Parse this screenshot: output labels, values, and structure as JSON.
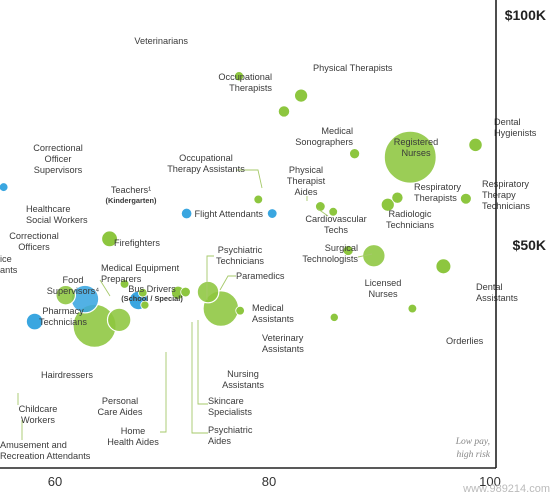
{
  "chart_data": {
    "type": "scatter",
    "title": "",
    "xlabel": "",
    "ylabel": "",
    "x_ticks": [
      "60",
      "80",
      "100"
    ],
    "y_ticks": [
      "$100K",
      "$50K"
    ],
    "xlim": [
      50,
      100
    ],
    "ylim": [
      0,
      105000
    ],
    "colors": {
      "green": "#8dc63f",
      "blue": "#3aa6e0",
      "leader": "#a6c96a",
      "axis": "#222222"
    },
    "note": [
      "Low pay,",
      "high risk"
    ],
    "watermark": "www.989214.com",
    "points": [
      {
        "label": [
          "Veterinarians"
        ],
        "x": 77.2,
        "y": 98000,
        "size": 1,
        "color": "green"
      },
      {
        "label": [
          "Physical Therapists"
        ],
        "x": 83.0,
        "y": 92500,
        "size": 2,
        "color": "green"
      },
      {
        "label": [
          "Occupational",
          "Therapists"
        ],
        "x": 81.4,
        "y": 88000,
        "size": 1.5,
        "color": "green"
      },
      {
        "label": [
          "Medical",
          "Sonographers"
        ],
        "x": 88.0,
        "y": 76000,
        "size": 1.2,
        "color": "green"
      },
      {
        "label": [
          "Registered",
          "Nurses"
        ],
        "x": 93.2,
        "y": 75000,
        "size": 32,
        "color": "green"
      },
      {
        "label": [
          "Dental",
          "Hygienists"
        ],
        "x": 99.3,
        "y": 78500,
        "size": 2.1,
        "color": "green"
      },
      {
        "label": [
          "Correctional",
          "Officer",
          "Supervisors"
        ],
        "x": 55.2,
        "y": 66500,
        "size": 0.9,
        "color": "blue"
      },
      {
        "label": [
          "Occupational",
          "Therapy Assistants"
        ],
        "x": 79.0,
        "y": 63000,
        "size": 0.9,
        "color": "green"
      },
      {
        "label": [
          "Teachers¹",
          "(Kindergarten)"
        ],
        "x": 72.3,
        "y": 59000,
        "size": 1.3,
        "color": "blue"
      },
      {
        "label": [
          "Physical",
          "Therapist",
          "Assistants"
        ],
        "x": 84.8,
        "y": 61000,
        "size": 1.1,
        "color": "green"
      },
      {
        "label": [
          "Cardiovascular",
          "Techs"
        ],
        "x": 86.0,
        "y": 59500,
        "size": 0.9,
        "color": "green"
      },
      {
        "label": [
          "Respiratory",
          "Therapists"
        ],
        "x": 92.0,
        "y": 63500,
        "size": 1.5,
        "color": "green"
      },
      {
        "label": [
          "Radiologic",
          "Technicians"
        ],
        "x": 91.1,
        "y": 61500,
        "size": 2,
        "color": "green"
      },
      {
        "label": [
          "Respiratory",
          "Therapy",
          "Technicians"
        ],
        "x": 98.4,
        "y": 63200,
        "size": 1.4,
        "color": "green"
      },
      {
        "label": [
          "Healthcare",
          "Social Workers"
        ],
        "x": 51.3,
        "y": 59000,
        "size": 1.6,
        "color": "green"
      },
      {
        "label": [
          "Flight Attendants"
        ],
        "x": 80.3,
        "y": 59000,
        "size": 1.1,
        "color": "blue"
      },
      {
        "label": [
          "Correctional",
          "Officers"
        ],
        "x": 53.3,
        "y": 45000,
        "size": 3.5,
        "color": "blue"
      },
      {
        "label": [
          "Firefighters"
        ],
        "x": 65.1,
        "y": 51800,
        "size": 2.9,
        "color": "green"
      },
      {
        "label": [
          "Surgical",
          "Technologists"
        ],
        "x": 87.4,
        "y": 48500,
        "size": 1.2,
        "color": "green"
      },
      {
        "label": [
          "Licensed",
          "Nurses"
        ],
        "x": 89.8,
        "y": 47000,
        "size": 6,
        "color": "green"
      },
      {
        "label": [
          "Medical Equipment",
          "Preparers"
        ],
        "x": 66.5,
        "y": 39000,
        "size": 0.9,
        "color": "green"
      },
      {
        "label": [
          "Psychiatric",
          "Technicians"
        ],
        "x": 71.5,
        "y": 36500,
        "size": 2,
        "color": "green"
      },
      {
        "label": [
          "Paramedics"
        ],
        "x": 72.2,
        "y": 36700,
        "size": 1.1,
        "color": "green"
      },
      {
        "label": [
          "Food",
          "Supervisors⁴"
        ],
        "x": 62.8,
        "y": 34700,
        "size": 9,
        "color": "blue"
      },
      {
        "label": [
          "Pharmacy",
          "Technicians"
        ],
        "x": 61.0,
        "y": 35800,
        "size": 4.5,
        "color": "green"
      },
      {
        "label": [
          "Bus Drivers",
          "(School / Special)"
        ],
        "x": 67.8,
        "y": 34300,
        "size": 4,
        "color": "blue"
      },
      {
        "label": [
          "Medical",
          "Assistants"
        ],
        "x": 74.3,
        "y": 36700,
        "size": 5.5,
        "color": "green"
      },
      {
        "label": [
          "Dental",
          "Assistants"
        ],
        "x": 96.3,
        "y": 44000,
        "size": 2.6,
        "color": "green"
      },
      {
        "label": [
          "Veterinary",
          "Assistants"
        ],
        "x": 77.3,
        "y": 31400,
        "size": 0.9,
        "color": "green"
      },
      {
        "label": [
          "Nursing",
          "Assistants"
        ],
        "x": 75.5,
        "y": 32000,
        "size": 15,
        "color": "green"
      },
      {
        "label": [
          "Orderlies"
        ],
        "x": 93.4,
        "y": 32000,
        "size": 0.9,
        "color": "green"
      },
      {
        "label": [
          "Physical",
          "Therapist",
          "Aides"
        ],
        "x": 86.1,
        "y": 29500,
        "size": 0.8,
        "color": "green"
      },
      {
        "label": [
          "Hairdressers"
        ],
        "x": 58.1,
        "y": 28300,
        "size": 3.2,
        "color": "blue"
      },
      {
        "label": [
          "Personal",
          "Care Aides"
        ],
        "x": 63.7,
        "y": 27100,
        "size": 22,
        "color": "green"
      },
      {
        "label": [
          "Home",
          "Health Aides"
        ],
        "x": 66.0,
        "y": 28800,
        "size": 6.5,
        "color": "green"
      },
      {
        "label": [
          "Skincare",
          "Specialists"
        ],
        "x": 68.2,
        "y": 36500,
        "size": 0.9,
        "color": "green"
      },
      {
        "label": [
          "Psychiatric",
          "Aides"
        ],
        "x": 68.4,
        "y": 33000,
        "size": 0.8,
        "color": "green"
      },
      {
        "label": [
          "Childcare",
          "Workers"
        ],
        "x": 50.2,
        "y": 29000,
        "size": 6,
        "color": "blue"
      },
      {
        "label": [
          "Amusement and",
          "Recreation Attendants"
        ],
        "x": 49.5,
        "y": 10000,
        "size": 1,
        "color": "green",
        "offchart": true
      },
      {
        "label": [
          "ice",
          "ants"
        ],
        "x": 49.0,
        "y": 45000,
        "size": 1,
        "color": "blue",
        "offchart": true
      }
    ]
  }
}
